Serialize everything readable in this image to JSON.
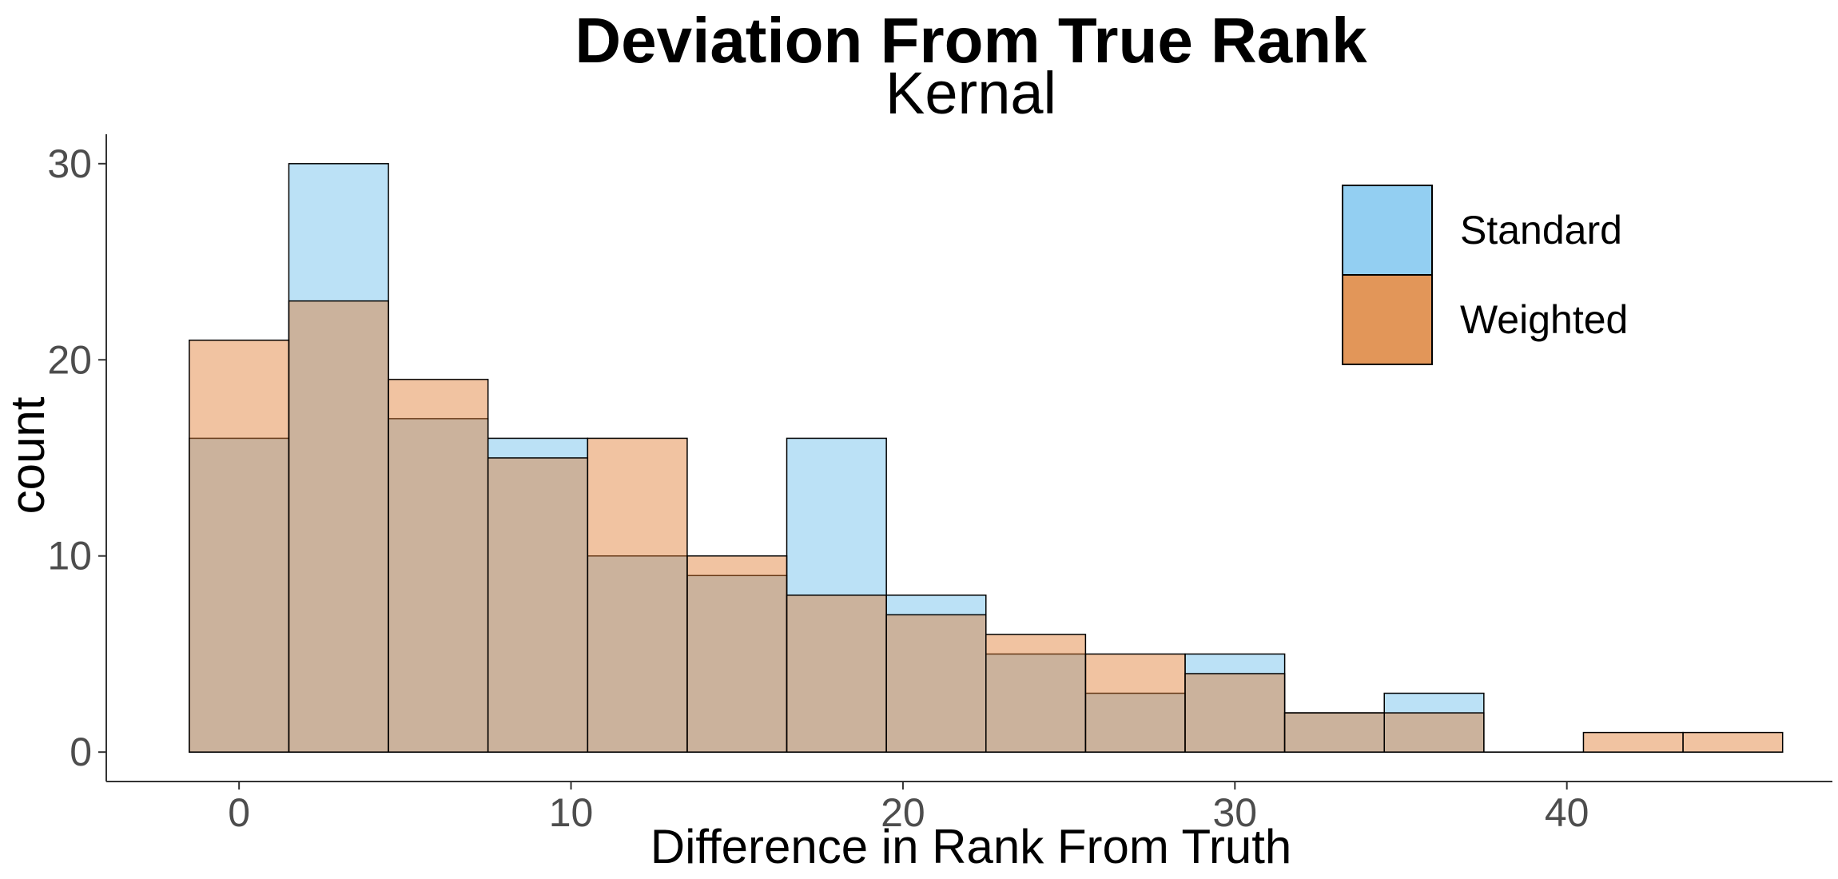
{
  "chart_data": {
    "type": "bar",
    "title": "Deviation From True Rank",
    "subtitle": "Kernal",
    "xlabel": "Difference in Rank From Truth",
    "ylabel": "count",
    "bin_width": 3,
    "bin_centers": [
      0,
      3,
      6,
      9,
      12,
      15,
      18,
      21,
      24,
      27,
      30,
      33,
      36,
      39,
      42,
      45
    ],
    "xlim": [
      -4,
      48
    ],
    "ylim": [
      -1.5,
      31.5
    ],
    "x_ticks": [
      0,
      10,
      20,
      30,
      40
    ],
    "x_tick_labels": [
      "0",
      "10",
      "20",
      "30",
      "40"
    ],
    "y_ticks": [
      0,
      10,
      20,
      30
    ],
    "y_tick_labels": [
      "0",
      "10",
      "20",
      "30"
    ],
    "grid": false,
    "legend_position": "top-right",
    "series": [
      {
        "name": "Standard",
        "color": "#56B4E9",
        "fill_opacity": 0.4,
        "values": [
          16,
          30,
          17,
          16,
          10,
          9,
          16,
          8,
          5,
          3,
          5,
          2,
          3,
          0,
          0,
          0
        ]
      },
      {
        "name": "Weighted",
        "color": "#E07B2E",
        "fill_opacity": 0.45,
        "values": [
          21,
          23,
          19,
          15,
          16,
          10,
          8,
          7,
          6,
          5,
          4,
          2,
          2,
          0,
          1,
          1
        ]
      }
    ],
    "legend_colors": [
      "#93CFF2",
      "#E29659"
    ]
  }
}
